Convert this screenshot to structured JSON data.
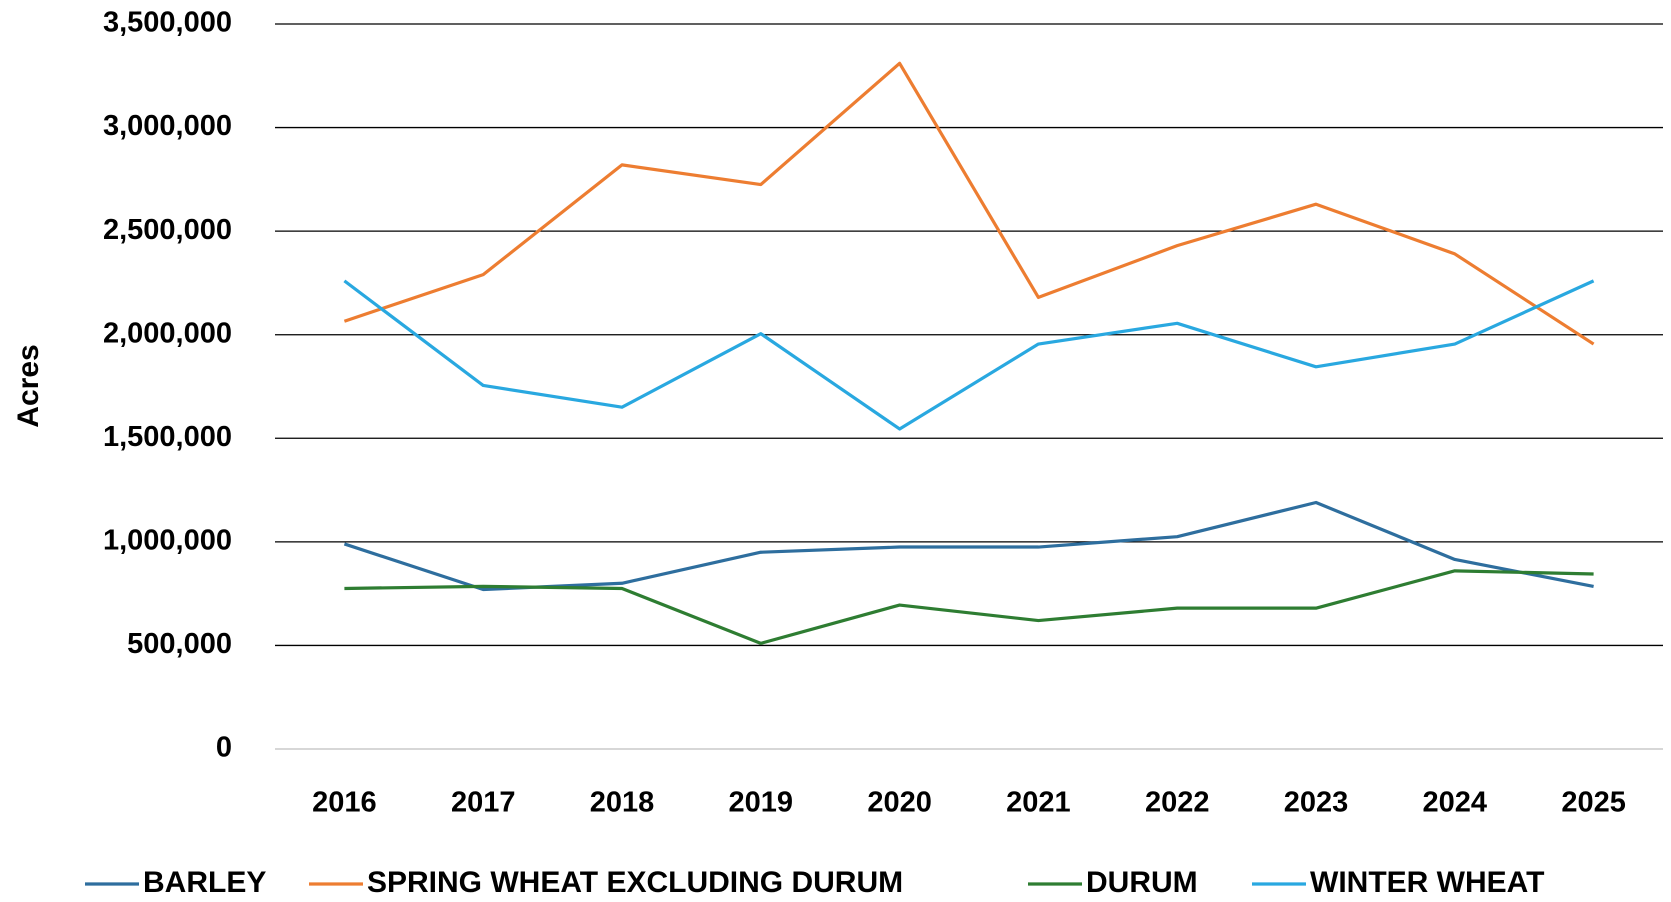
{
  "chart_data": {
    "type": "line",
    "y_label": "Acres",
    "categories": [
      "2016",
      "2017",
      "2018",
      "2019",
      "2020",
      "2021",
      "2022",
      "2023",
      "2024",
      "2025"
    ],
    "series": [
      {
        "name": "BARLEY",
        "color": "#2e6e9e",
        "values": [
          990000,
          770000,
          800000,
          950000,
          975000,
          975000,
          1025000,
          1190000,
          915000,
          785000
        ]
      },
      {
        "name": "SPRING WHEAT EXCLUDING DURUM",
        "color": "#ed7d31",
        "values": [
          2065000,
          2290000,
          2820000,
          2725000,
          3310000,
          2180000,
          2430000,
          2630000,
          2390000,
          1955000
        ]
      },
      {
        "name": "DURUM",
        "color": "#2e7d32",
        "values": [
          775000,
          785000,
          775000,
          510000,
          695000,
          620000,
          680000,
          680000,
          860000,
          845000
        ]
      },
      {
        "name": "WINTER WHEAT",
        "color": "#29a8e0",
        "values": [
          2260000,
          1755000,
          1650000,
          2005000,
          1545000,
          1955000,
          2055000,
          1845000,
          1955000,
          2260000
        ]
      }
    ],
    "ylim": [
      0,
      3500000
    ],
    "yticks": [
      0,
      {
        "value": 500000,
        "label": "500,000"
      },
      {
        "value": 1000000,
        "label": "1,000,000"
      },
      {
        "value": 1500000,
        "label": "1,500,000"
      },
      {
        "value": 2000000,
        "label": "2,000,000"
      },
      {
        "value": 2500000,
        "label": "2,500,000"
      },
      {
        "value": 3000000,
        "label": "3,000,000"
      },
      {
        "value": 3500000,
        "label": "3,500,000"
      }
    ],
    "grid": true,
    "legend": "bottom"
  }
}
